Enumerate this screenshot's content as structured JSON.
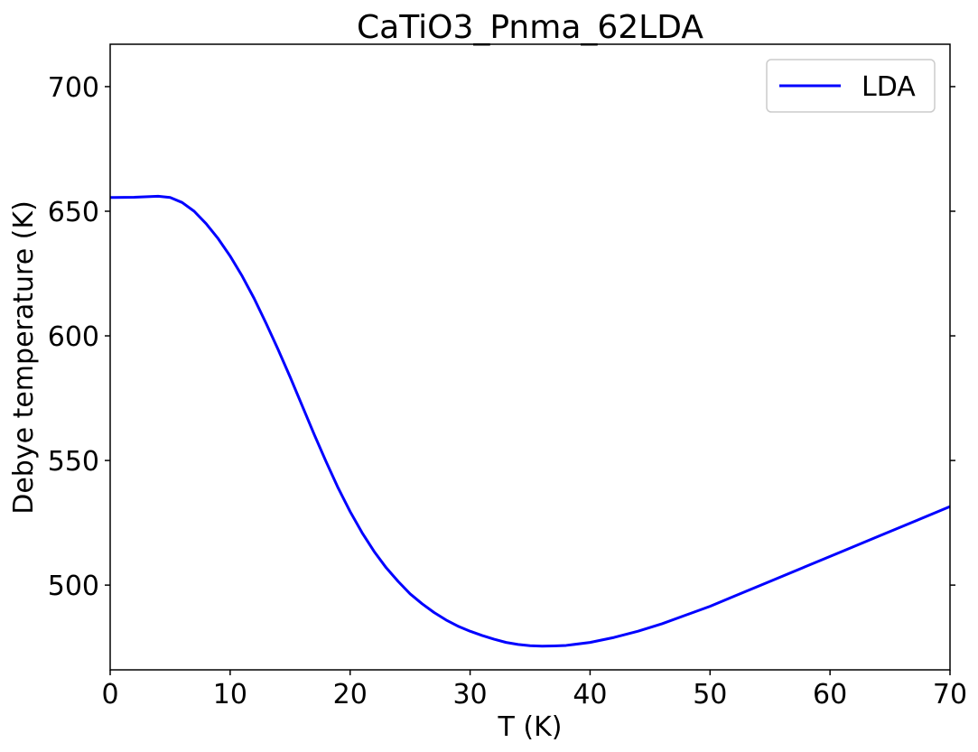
{
  "chart_data": {
    "type": "line",
    "title": "CaTiO3_Pnma_62LDA",
    "xlabel": "T (K)",
    "ylabel": "Debye temperature (K)",
    "xlim": [
      0,
      70
    ],
    "ylim": [
      466,
      717
    ],
    "xticks": [
      0,
      10,
      20,
      30,
      40,
      50,
      60,
      70
    ],
    "yticks": [
      500,
      550,
      600,
      650,
      700
    ],
    "grid": false,
    "legend_position": "top-right",
    "series": [
      {
        "name": "LDA",
        "color": "#0000ff",
        "x": [
          0,
          2,
          4,
          5,
          6,
          7,
          8,
          9,
          10,
          11,
          12,
          13,
          14,
          15,
          16,
          17,
          18,
          19,
          20,
          21,
          22,
          23,
          24,
          25,
          26,
          27,
          28,
          29,
          30,
          31,
          32,
          33,
          34,
          35,
          36,
          37,
          38,
          40,
          42,
          44,
          46,
          48,
          50,
          52,
          55,
          58,
          61,
          64,
          67,
          70
        ],
        "y": [
          655.5,
          655.6,
          656.0,
          655.5,
          653.5,
          650.0,
          645.0,
          639.0,
          632.0,
          624.0,
          615.0,
          605.0,
          594.5,
          583.5,
          572.0,
          560.5,
          549.5,
          539.0,
          529.5,
          521.0,
          513.5,
          507.0,
          501.5,
          496.5,
          492.5,
          489.0,
          486.0,
          483.5,
          481.5,
          479.8,
          478.3,
          477.0,
          476.2,
          475.7,
          475.5,
          475.6,
          475.8,
          477.0,
          479.0,
          481.5,
          484.5,
          488.0,
          491.5,
          495.5,
          501.5,
          507.5,
          513.5,
          519.5,
          525.5,
          531.5
        ]
      }
    ]
  }
}
